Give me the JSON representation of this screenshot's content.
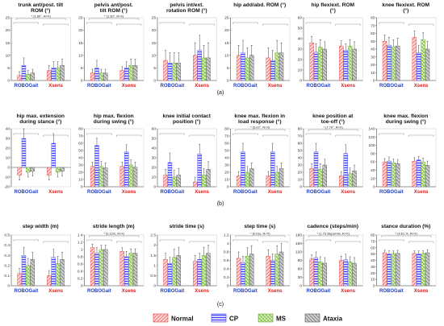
{
  "colors": {
    "normal": "#ff7b7b",
    "cp": "#6a6aff",
    "ms": "#8fd14f",
    "ataxia": "#8c8c8c",
    "robogait_label": "#1f3fbf",
    "xsens_label": "#e01b1b"
  },
  "groups": [
    "ROBOGait",
    "Xsens"
  ],
  "legend": [
    "Normal",
    "CP",
    "MS",
    "Ataxia"
  ],
  "panel_labels": [
    "(a)",
    "(b)",
    "(c)"
  ],
  "chart_data": [
    {
      "type": "bar",
      "title": "trunk ant/post. tilt ROM (°)",
      "ylim": [
        0,
        25
      ],
      "yticks": [
        "0",
        "5",
        "10",
        "15",
        "20",
        "25"
      ],
      "values": [
        [
          2,
          6,
          2.5,
          3
        ],
        [
          4,
          5,
          5,
          6
        ]
      ],
      "errors": [
        [
          1.5,
          3,
          1.5,
          1.5
        ],
        [
          2,
          2.5,
          2.5,
          2.5
        ]
      ],
      "annotation": "* (1.80°, R<X)"
    },
    {
      "type": "bar",
      "title": "pelvis ant/post. tilt ROM (°)",
      "ylim": [
        0,
        25
      ],
      "yticks": [
        "0",
        "5",
        "10",
        "15",
        "20",
        "25"
      ],
      "values": [
        [
          3,
          5,
          3,
          3
        ],
        [
          4,
          5,
          6,
          6
        ]
      ],
      "errors": [
        [
          1.5,
          3,
          1.5,
          1.5
        ],
        [
          1.5,
          2.5,
          2.5,
          2.5
        ]
      ],
      "annotation": "* (1.30°, R<X)"
    },
    {
      "type": "bar",
      "title": "pelvis int/ext. rotation ROM (°)",
      "ylim": [
        0,
        25
      ],
      "yticks": [
        "0",
        "5",
        "10",
        "15",
        "20",
        "25"
      ],
      "values": [
        [
          8,
          7,
          7,
          7
        ],
        [
          10,
          12,
          9,
          9
        ]
      ],
      "errors": [
        [
          4,
          4,
          4,
          4
        ],
        [
          5,
          6,
          5,
          6
        ]
      ],
      "annotation": ""
    },
    {
      "type": "bar",
      "title": "hip add/abd. ROM (°)",
      "ylim": [
        0,
        25
      ],
      "yticks": [
        "0",
        "5",
        "10",
        "15",
        "20",
        "25"
      ],
      "values": [
        [
          10,
          11,
          9,
          10
        ],
        [
          9,
          8,
          11,
          11
        ]
      ],
      "errors": [
        [
          4,
          5,
          4,
          4
        ],
        [
          4,
          4,
          5,
          4
        ]
      ],
      "annotation": ""
    },
    {
      "type": "bar",
      "title": "hip flex/ext. ROM (°)",
      "ylim": [
        0,
        60
      ],
      "yticks": [
        "0",
        "10",
        "20",
        "30",
        "40",
        "50",
        "60"
      ],
      "values": [
        [
          36,
          27,
          32,
          30
        ],
        [
          33,
          29,
          33,
          30
        ]
      ],
      "errors": [
        [
          6,
          8,
          7,
          7
        ],
        [
          5,
          6,
          6,
          7
        ]
      ],
      "annotation": ""
    },
    {
      "type": "bar",
      "title": "knee flex/ext. ROM (°)",
      "ylim": [
        0,
        80
      ],
      "yticks": [
        "0",
        "10",
        "20",
        "30",
        "40",
        "50",
        "60",
        "70",
        "80"
      ],
      "values": [
        [
          50,
          45,
          43,
          44
        ],
        [
          55,
          35,
          52,
          40
        ]
      ],
      "errors": [
        [
          8,
          10,
          9,
          10
        ],
        [
          8,
          10,
          9,
          10
        ]
      ],
      "annotation": ""
    },
    {
      "type": "bar",
      "title": "hip max. extension during stance (°)",
      "ylim": [
        -20,
        40
      ],
      "yticks": [
        "-20",
        "-10",
        "0",
        "10",
        "20",
        "30",
        "40"
      ],
      "values": [
        [
          -8,
          30,
          -5,
          -4
        ],
        [
          -8,
          25,
          -5,
          -4
        ]
      ],
      "errors": [
        [
          5,
          10,
          5,
          5
        ],
        [
          5,
          10,
          5,
          5
        ]
      ],
      "annotation": ""
    },
    {
      "type": "bar",
      "title": "hip max. flexion during swing (°)",
      "ylim": [
        0,
        80
      ],
      "yticks": [
        "0",
        "10",
        "20",
        "30",
        "40",
        "50",
        "60",
        "70",
        "80"
      ],
      "values": [
        [
          28,
          57,
          28,
          26
        ],
        [
          28,
          48,
          30,
          27
        ]
      ],
      "errors": [
        [
          6,
          10,
          7,
          7
        ],
        [
          6,
          10,
          7,
          7
        ]
      ],
      "annotation": ""
    },
    {
      "type": "bar",
      "title": "knee initial contact position (°)",
      "ylim": [
        0,
        60
      ],
      "yticks": [
        "0",
        "10",
        "20",
        "30",
        "40",
        "50",
        "60"
      ],
      "values": [
        [
          12,
          25,
          10,
          12
        ],
        [
          5,
          34,
          12,
          18
        ]
      ],
      "errors": [
        [
          6,
          10,
          7,
          7
        ],
        [
          5,
          10,
          7,
          8
        ]
      ],
      "annotation": ""
    },
    {
      "type": "bar",
      "title": "knee max. flexion in load response (°)",
      "ylim": [
        0,
        80
      ],
      "yticks": [
        "0",
        "10",
        "20",
        "30",
        "40",
        "50",
        "60",
        "70",
        "80"
      ],
      "values": [
        [
          15,
          48,
          20,
          25
        ],
        [
          15,
          48,
          20,
          25
        ]
      ],
      "errors": [
        [
          6,
          12,
          8,
          8
        ],
        [
          6,
          12,
          8,
          8
        ]
      ],
      "annotation": "* (5.02°, R<X)"
    },
    {
      "type": "bar",
      "title": "knee position at toe-off (°)",
      "ylim": [
        0,
        80
      ],
      "yticks": [
        "0",
        "10",
        "20",
        "30",
        "40",
        "50",
        "60",
        "70",
        "80"
      ],
      "values": [
        [
          25,
          48,
          24,
          30
        ],
        [
          15,
          46,
          18,
          22
        ]
      ],
      "errors": [
        [
          7,
          12,
          8,
          8
        ],
        [
          6,
          12,
          8,
          8
        ]
      ],
      "annotation": "* (7.70°, R>X)"
    },
    {
      "type": "bar",
      "title": "knee max. flexion during swing (°)",
      "ylim": [
        0,
        140
      ],
      "yticks": [
        "0",
        "20",
        "40",
        "60",
        "80",
        "100",
        "120",
        "140"
      ],
      "values": [
        [
          60,
          62,
          58,
          56
        ],
        [
          62,
          65,
          60,
          52
        ]
      ],
      "errors": [
        [
          8,
          10,
          9,
          10
        ],
        [
          8,
          8,
          9,
          10
        ]
      ],
      "annotation": ""
    },
    {
      "type": "bar",
      "title": "step width (m)",
      "ylim": [
        0,
        0.5
      ],
      "yticks": [
        "0",
        "0.1",
        "0.2",
        "0.3",
        "0.4",
        "0.5"
      ],
      "values": [
        [
          0.12,
          0.3,
          0.2,
          0.26
        ],
        [
          0.1,
          0.28,
          0.22,
          0.26
        ]
      ],
      "errors": [
        [
          0.05,
          0.08,
          0.07,
          0.07
        ],
        [
          0.05,
          0.08,
          0.07,
          0.07
        ]
      ],
      "annotation": ""
    },
    {
      "type": "bar",
      "title": "stride length (m)",
      "ylim": [
        0,
        1.4
      ],
      "yticks": [
        "0",
        "0.2",
        "0.4",
        "0.6",
        "0.8",
        "1",
        "1.2",
        "1.4"
      ],
      "values": [
        [
          1.05,
          0.9,
          1.0,
          1.0
        ],
        [
          0.95,
          0.8,
          0.9,
          0.9
        ]
      ],
      "errors": [
        [
          0.1,
          0.15,
          0.12,
          0.12
        ],
        [
          0.1,
          0.15,
          0.12,
          0.12
        ]
      ],
      "annotation": "* (0.12m, R>X)"
    },
    {
      "type": "bar",
      "title": "stride time (s)",
      "ylim": [
        0,
        2.5
      ],
      "yticks": [
        "0",
        "0.5",
        "1",
        "1.5",
        "2",
        "2.5"
      ],
      "values": [
        [
          1.3,
          1.1,
          1.4,
          1.5
        ],
        [
          1.2,
          1.3,
          1.5,
          1.6
        ]
      ],
      "errors": [
        [
          0.3,
          0.3,
          0.4,
          0.4
        ],
        [
          0.3,
          0.3,
          0.4,
          0.4
        ]
      ],
      "annotation": ""
    },
    {
      "type": "bar",
      "title": "step time (s)",
      "ylim": [
        0,
        1.2
      ],
      "yticks": [
        "0",
        "0.2",
        "0.4",
        "0.6",
        "0.8",
        "1",
        "1.2"
      ],
      "values": [
        [
          0.65,
          0.55,
          0.7,
          0.75
        ],
        [
          0.7,
          0.6,
          0.75,
          0.8
        ]
      ],
      "errors": [
        [
          0.15,
          0.15,
          0.2,
          0.2
        ],
        [
          0.15,
          0.15,
          0.2,
          0.2
        ]
      ],
      "annotation": "* (0.01s, R<X)"
    },
    {
      "type": "bar",
      "title": "cadence (steps/min)",
      "ylim": [
        0,
        180
      ],
      "yticks": [
        "0",
        "30",
        "60",
        "90",
        "120",
        "150",
        "180"
      ],
      "values": [
        [
          95,
          100,
          85,
          80
        ],
        [
          90,
          92,
          85,
          80
        ]
      ],
      "errors": [
        [
          15,
          20,
          18,
          20
        ],
        [
          15,
          20,
          18,
          20
        ]
      ],
      "annotation": "* (1.73 steps/min, R>X)"
    },
    {
      "type": "bar",
      "title": "stance duration (%)",
      "ylim": [
        0,
        80
      ],
      "yticks": [
        "0",
        "10",
        "20",
        "30",
        "40",
        "50",
        "60",
        "70",
        "80"
      ],
      "values": [
        [
          52,
          50,
          51,
          51
        ],
        [
          51,
          50,
          51,
          52
        ]
      ],
      "errors": [
        [
          4,
          5,
          4,
          5
        ],
        [
          4,
          5,
          4,
          5
        ]
      ],
      "annotation": "* (0.61 %, R<X)"
    }
  ]
}
